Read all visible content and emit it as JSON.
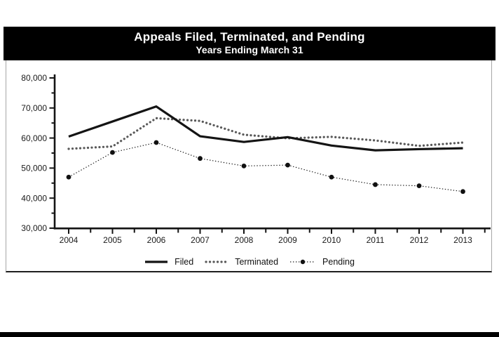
{
  "page": {
    "title": "Appeals Filed, Terminated, and Pending",
    "subtitle": "Years Ending March 31"
  },
  "colors": {
    "banner_bg": "#000000",
    "banner_text": "#ffffff",
    "axis": "#141414",
    "tick_label": "#1a1a1a",
    "filed_line": "#141414",
    "terminated_line": "#595959",
    "pending_line": "#1c1c1c",
    "pending_marker": "#111111",
    "frame_border": "#a6a6a6",
    "frame_bottom_rule": "#1f1f1f",
    "bottom_bar": "#000000"
  },
  "chart_data": {
    "type": "line",
    "title": "Appeals Filed, Terminated, and Pending",
    "subtitle": "Years Ending March 31",
    "categories": [
      "2004",
      "2005",
      "2006",
      "2007",
      "2008",
      "2009",
      "2010",
      "2011",
      "2012",
      "2013"
    ],
    "series": [
      {
        "name": "Filed",
        "style": "solid",
        "values": [
          60500,
          65500,
          70500,
          60600,
          58700,
          60300,
          57500,
          55900,
          56300,
          56600
        ]
      },
      {
        "name": "Terminated",
        "style": "dotted-thick",
        "values": [
          56400,
          57200,
          66600,
          65700,
          61100,
          59900,
          60400,
          59200,
          57400,
          58500
        ]
      },
      {
        "name": "Pending",
        "style": "dotted-marker",
        "values": [
          47000,
          55200,
          58500,
          53200,
          50700,
          51000,
          47000,
          44500,
          44100,
          42200
        ]
      }
    ],
    "xlabel": "",
    "ylabel": "",
    "ylim": [
      30000,
      80000
    ],
    "ytick_interval": 10000,
    "yminor_interval": 5000,
    "ytick_labels": [
      "30,000",
      "40,000",
      "50,000",
      "60,000",
      "70,000",
      "80,000"
    ],
    "grid": false,
    "legend_position": "bottom"
  }
}
